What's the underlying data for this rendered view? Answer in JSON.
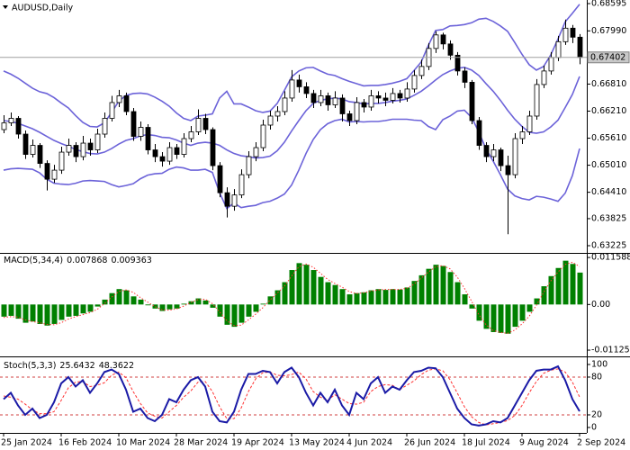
{
  "chart_data": [
    {
      "type": "candlestick",
      "title": "AUDUSD,Daily",
      "categories": [
        "25 Jan 2024",
        null,
        null,
        null,
        null,
        null,
        null,
        null,
        "16 Feb 2024",
        null,
        null,
        null,
        null,
        null,
        null,
        null,
        "10 Mar 2024",
        null,
        null,
        null,
        null,
        null,
        null,
        null,
        "28 Mar 2024",
        null,
        null,
        null,
        null,
        null,
        null,
        null,
        "19 Apr 2024",
        null,
        null,
        null,
        null,
        null,
        null,
        null,
        "13 May 2024",
        null,
        null,
        null,
        null,
        null,
        null,
        null,
        "4 Jun 2024",
        null,
        null,
        null,
        null,
        null,
        null,
        null,
        "26 Jun 2024",
        null,
        null,
        null,
        null,
        null,
        null,
        null,
        "18 Jul 2024",
        null,
        null,
        null,
        null,
        null,
        null,
        null,
        "9 Aug 2024",
        null,
        null,
        null,
        null,
        null,
        null,
        null,
        "2 Sep 2024"
      ],
      "open": [
        0.658,
        0.6595,
        0.6605,
        0.657,
        0.6525,
        0.6545,
        0.6505,
        0.647,
        0.649,
        0.653,
        0.6545,
        0.652,
        0.655,
        0.6535,
        0.657,
        0.6605,
        0.664,
        0.6655,
        0.662,
        0.6565,
        0.6585,
        0.6535,
        0.652,
        0.651,
        0.654,
        0.6525,
        0.656,
        0.6575,
        0.6605,
        0.658,
        0.65,
        0.644,
        0.641,
        0.6435,
        0.648,
        0.652,
        0.654,
        0.659,
        0.661,
        0.662,
        0.665,
        0.669,
        0.6675,
        0.666,
        0.664,
        0.6655,
        0.6635,
        0.665,
        0.6615,
        0.66,
        0.664,
        0.663,
        0.6655,
        0.665,
        0.6645,
        0.666,
        0.665,
        0.667,
        0.67,
        0.672,
        0.676,
        0.679,
        0.677,
        0.6745,
        0.671,
        0.6685,
        0.66,
        0.6545,
        0.652,
        0.6535,
        0.65,
        0.648,
        0.656,
        0.6575,
        0.661,
        0.668,
        0.671,
        0.674,
        0.6775,
        0.6805,
        0.6785
      ],
      "high": [
        0.6612,
        0.6618,
        0.661,
        0.6578,
        0.6558,
        0.655,
        0.6512,
        0.6502,
        0.6542,
        0.656,
        0.6552,
        0.6566,
        0.656,
        0.6582,
        0.6618,
        0.6655,
        0.6668,
        0.6662,
        0.6628,
        0.6598,
        0.6592,
        0.6548,
        0.653,
        0.6552,
        0.6548,
        0.6572,
        0.6588,
        0.6625,
        0.6615,
        0.6585,
        0.6508,
        0.6452,
        0.6448,
        0.6492,
        0.6532,
        0.6552,
        0.6602,
        0.6622,
        0.6632,
        0.6665,
        0.6712,
        0.6702,
        0.6685,
        0.6668,
        0.6668,
        0.6662,
        0.6665,
        0.6658,
        0.6622,
        0.6652,
        0.6648,
        0.6668,
        0.6665,
        0.6662,
        0.6672,
        0.6668,
        0.6685,
        0.6712,
        0.6735,
        0.6772,
        0.6798,
        0.6795,
        0.6778,
        0.6752,
        0.6718,
        0.669,
        0.6608,
        0.6552,
        0.6548,
        0.654,
        0.6522,
        0.6572,
        0.6588,
        0.6622,
        0.6692,
        0.6722,
        0.6752,
        0.6788,
        0.6824,
        0.6812,
        0.6792
      ],
      "low": [
        0.6572,
        0.6588,
        0.656,
        0.6515,
        0.6518,
        0.6495,
        0.6445,
        0.6462,
        0.6482,
        0.6522,
        0.6508,
        0.6512,
        0.6522,
        0.6528,
        0.6562,
        0.6598,
        0.663,
        0.6612,
        0.6555,
        0.6555,
        0.6525,
        0.6508,
        0.6498,
        0.6502,
        0.6515,
        0.6518,
        0.6552,
        0.6568,
        0.657,
        0.649,
        0.643,
        0.6385,
        0.64,
        0.6428,
        0.6472,
        0.651,
        0.6532,
        0.658,
        0.6598,
        0.6612,
        0.6642,
        0.6662,
        0.665,
        0.6628,
        0.6632,
        0.6622,
        0.6628,
        0.6598,
        0.6588,
        0.6592,
        0.6618,
        0.6622,
        0.6638,
        0.6632,
        0.6638,
        0.664,
        0.6642,
        0.6662,
        0.6692,
        0.6712,
        0.675,
        0.6758,
        0.6735,
        0.67,
        0.6672,
        0.6592,
        0.6535,
        0.6508,
        0.651,
        0.6488,
        0.6348,
        0.6472,
        0.6548,
        0.6568,
        0.6602,
        0.6672,
        0.6702,
        0.6732,
        0.6768,
        0.6772,
        0.6725
      ],
      "close": [
        0.6595,
        0.6605,
        0.657,
        0.6525,
        0.6545,
        0.6505,
        0.647,
        0.649,
        0.653,
        0.6545,
        0.652,
        0.655,
        0.6535,
        0.657,
        0.6605,
        0.664,
        0.6655,
        0.662,
        0.6565,
        0.6585,
        0.6535,
        0.652,
        0.651,
        0.654,
        0.6525,
        0.656,
        0.6575,
        0.6605,
        0.658,
        0.65,
        0.644,
        0.641,
        0.6435,
        0.648,
        0.652,
        0.654,
        0.659,
        0.661,
        0.662,
        0.665,
        0.669,
        0.6675,
        0.666,
        0.664,
        0.6655,
        0.6635,
        0.665,
        0.6615,
        0.66,
        0.664,
        0.663,
        0.6655,
        0.665,
        0.6645,
        0.666,
        0.665,
        0.667,
        0.67,
        0.672,
        0.676,
        0.679,
        0.677,
        0.6745,
        0.671,
        0.6685,
        0.66,
        0.6545,
        0.652,
        0.6535,
        0.65,
        0.648,
        0.656,
        0.6575,
        0.661,
        0.668,
        0.671,
        0.674,
        0.6775,
        0.6805,
        0.6785,
        0.67402
      ],
      "color_up": "#ffffff",
      "color_down": "#000000",
      "outline": "#000000",
      "bands": {
        "color": "#6c63d9",
        "upper": [
          0.671,
          0.6703,
          0.6694,
          0.6683,
          0.6672,
          0.6664,
          0.666,
          0.6651,
          0.6639,
          0.6628,
          0.6611,
          0.6596,
          0.6587,
          0.6586,
          0.6595,
          0.6618,
          0.6643,
          0.6656,
          0.666,
          0.6661,
          0.6659,
          0.6652,
          0.6643,
          0.6632,
          0.6617,
          0.6605,
          0.66,
          0.661,
          0.6612,
          0.6615,
          0.665,
          0.6665,
          0.6637,
          0.6637,
          0.663,
          0.6622,
          0.6618,
          0.6621,
          0.6638,
          0.6667,
          0.6697,
          0.671,
          0.6717,
          0.6718,
          0.671,
          0.6703,
          0.67,
          0.6693,
          0.6687,
          0.6682,
          0.6677,
          0.6678,
          0.6678,
          0.668,
          0.6683,
          0.6687,
          0.6693,
          0.6711,
          0.673,
          0.6767,
          0.68,
          0.6802,
          0.681,
          0.6811,
          0.6813,
          0.6817,
          0.6825,
          0.6827,
          0.682,
          0.681,
          0.6798,
          0.6773,
          0.6747,
          0.6724,
          0.6712,
          0.672,
          0.6746,
          0.6781,
          0.6819,
          0.6838,
          0.6858
        ],
        "middle": [
          0.66,
          0.6598,
          0.6594,
          0.6588,
          0.6582,
          0.6574,
          0.6565,
          0.6556,
          0.6549,
          0.6543,
          0.6536,
          0.6531,
          0.6527,
          0.6526,
          0.653,
          0.6538,
          0.6548,
          0.6556,
          0.656,
          0.6566,
          0.6569,
          0.6567,
          0.6563,
          0.6562,
          0.6557,
          0.655,
          0.6545,
          0.655,
          0.6552,
          0.655,
          0.6545,
          0.6535,
          0.6527,
          0.6522,
          0.652,
          0.6517,
          0.6518,
          0.6521,
          0.6533,
          0.6552,
          0.6577,
          0.66,
          0.6622,
          0.6638,
          0.6645,
          0.6648,
          0.665,
          0.6648,
          0.6642,
          0.664,
          0.6637,
          0.6638,
          0.6638,
          0.664,
          0.6643,
          0.6645,
          0.6648,
          0.6656,
          0.6665,
          0.6677,
          0.669,
          0.6702,
          0.671,
          0.6716,
          0.6718,
          0.6712,
          0.67,
          0.6682,
          0.6665,
          0.6645,
          0.6623,
          0.6603,
          0.6587,
          0.6574,
          0.6572,
          0.6575,
          0.6586,
          0.6601,
          0.6629,
          0.6658,
          0.6698
        ],
        "lower": [
          0.649,
          0.6493,
          0.6494,
          0.6493,
          0.6492,
          0.6484,
          0.647,
          0.6461,
          0.6459,
          0.6458,
          0.6461,
          0.6466,
          0.6467,
          0.6466,
          0.6465,
          0.6458,
          0.6453,
          0.6456,
          0.646,
          0.6471,
          0.6479,
          0.6482,
          0.6483,
          0.6492,
          0.6497,
          0.6495,
          0.649,
          0.649,
          0.6492,
          0.6485,
          0.644,
          0.6405,
          0.6417,
          0.6407,
          0.641,
          0.6412,
          0.6418,
          0.6421,
          0.6428,
          0.6437,
          0.6457,
          0.649,
          0.6527,
          0.6558,
          0.658,
          0.6593,
          0.66,
          0.6603,
          0.6597,
          0.6598,
          0.6597,
          0.6598,
          0.6598,
          0.66,
          0.6603,
          0.6603,
          0.6603,
          0.6601,
          0.66,
          0.6587,
          0.658,
          0.6602,
          0.661,
          0.6621,
          0.6623,
          0.6607,
          0.6575,
          0.6537,
          0.651,
          0.648,
          0.6448,
          0.6433,
          0.6427,
          0.6424,
          0.6432,
          0.643,
          0.6426,
          0.6421,
          0.6439,
          0.6478,
          0.6538
        ]
      },
      "ylim": [
        0.63065,
        0.68675
      ],
      "yticks": [
        0.68595,
        {
          "value": 0.6799,
          "label": "0.67990"
        },
        {
          "value": 0.6681,
          "label": "0.66810"
        },
        {
          "value": 0.6621,
          "label": "0.66210"
        },
        {
          "value": 0.6561,
          "label": "0.65610"
        },
        {
          "value": 0.6501,
          "label": "0.65010"
        },
        {
          "value": 0.6441,
          "label": "0.64410"
        },
        0.63825,
        0.63225
      ],
      "last_price_line": true
    },
    {
      "type": "macd",
      "title": "MACD(5,34,4)",
      "series": [
        {
          "color": "#008000",
          "style": "histogram",
          "values": [
            -0.003,
            -0.0028,
            -0.0035,
            -0.0045,
            -0.0042,
            -0.0048,
            -0.0052,
            -0.0048,
            -0.0038,
            -0.003,
            -0.0028,
            -0.0022,
            -0.0018,
            -0.0005,
            0.0012,
            0.0028,
            0.0038,
            0.0035,
            0.002,
            0.0012,
            -0.0002,
            -0.001,
            -0.0016,
            -0.0012,
            -0.001,
            0.0002,
            0.0008,
            0.0015,
            0.001,
            -0.0008,
            -0.003,
            -0.005,
            -0.0055,
            -0.0045,
            -0.003,
            -0.0018,
            0.0002,
            0.002,
            0.0035,
            0.0055,
            0.0085,
            0.0102,
            0.0098,
            0.0085,
            0.0068,
            0.0055,
            0.0048,
            0.0038,
            0.0025,
            0.0028,
            0.003,
            0.0035,
            0.0038,
            0.0036,
            0.0038,
            0.0037,
            0.0042,
            0.0058,
            0.0072,
            0.0088,
            0.0098,
            0.0095,
            0.008,
            0.0055,
            0.0025,
            -0.001,
            -0.004,
            -0.006,
            -0.0068,
            -0.007,
            -0.0072,
            -0.0055,
            -0.004,
            -0.0018,
            0.0015,
            0.0045,
            0.007,
            0.009,
            0.0108,
            0.01,
            0.007868
          ]
        },
        {
          "color": "#ff3030",
          "style": "dotted",
          "values": [
            -0.0032,
            -0.003,
            -0.0031,
            -0.0038,
            -0.0042,
            -0.0045,
            -0.0049,
            -0.005,
            -0.0045,
            -0.0036,
            -0.003,
            -0.0025,
            -0.002,
            -0.0012,
            0.0002,
            0.0018,
            0.0032,
            0.0036,
            0.003,
            0.0017,
            0.0006,
            -0.0005,
            -0.0013,
            -0.0014,
            -0.0011,
            -0.0004,
            0.0005,
            0.0012,
            0.0013,
            0.0002,
            -0.0018,
            -0.004,
            -0.0052,
            -0.0051,
            -0.0038,
            -0.0024,
            -0.0008,
            0.0011,
            0.0028,
            0.0045,
            0.007,
            0.0093,
            0.01,
            0.0092,
            0.0077,
            0.0062,
            0.0052,
            0.0043,
            0.0032,
            0.0027,
            0.0029,
            0.0033,
            0.0036,
            0.0037,
            0.0037,
            0.0037,
            0.004,
            0.005,
            0.0065,
            0.008,
            0.0093,
            0.0096,
            0.0088,
            0.0068,
            0.004,
            0.0008,
            -0.0025,
            -0.005,
            -0.0064,
            -0.0069,
            -0.0071,
            -0.0063,
            -0.0048,
            -0.0029,
            -0.0002,
            0.003,
            0.0058,
            0.008,
            0.0099,
            0.0104,
            0.009363
          ]
        }
      ],
      "ylim": [
        -0.0128,
        0.0125
      ],
      "yticks": [
        0.011588,
        {
          "value": 0,
          "label": "0.00"
        },
        -0.011255
      ]
    },
    {
      "type": "stochastic",
      "title": "Stoch(5,3,3)",
      "series": [
        {
          "color": "#1a1aa6",
          "style": "solid",
          "values": [
            45,
            55,
            35,
            20,
            30,
            15,
            20,
            40,
            70,
            80,
            65,
            75,
            55,
            70,
            88,
            92,
            85,
            60,
            25,
            30,
            15,
            10,
            20,
            45,
            40,
            60,
            75,
            80,
            65,
            25,
            10,
            8,
            25,
            60,
            85,
            85,
            90,
            88,
            70,
            88,
            95,
            80,
            55,
            35,
            55,
            40,
            60,
            35,
            20,
            55,
            45,
            70,
            80,
            55,
            65,
            60,
            75,
            88,
            90,
            95,
            94,
            80,
            55,
            30,
            15,
            5,
            3,
            5,
            10,
            8,
            15,
            35,
            55,
            75,
            90,
            92,
            92,
            97,
            75,
            45,
            25.6432
          ]
        },
        {
          "color": "#ff3030",
          "style": "dashed",
          "values": [
            50,
            48,
            45,
            37,
            28,
            22,
            22,
            25,
            43,
            63,
            72,
            73,
            65,
            67,
            71,
            83,
            88,
            79,
            57,
            38,
            23,
            18,
            15,
            25,
            35,
            48,
            58,
            72,
            73,
            57,
            33,
            14,
            14,
            31,
            57,
            77,
            87,
            88,
            83,
            82,
            84,
            88,
            77,
            57,
            48,
            43,
            52,
            45,
            38,
            37,
            40,
            57,
            65,
            68,
            67,
            60,
            67,
            74,
            84,
            91,
            93,
            90,
            76,
            55,
            33,
            17,
            8,
            4,
            6,
            8,
            11,
            19,
            35,
            55,
            73,
            86,
            91,
            93,
            88,
            72,
            48.3622
          ]
        }
      ],
      "levels": [
        80,
        20
      ],
      "level_color": "#d04040",
      "ylim": [
        -8.6,
        111.4
      ],
      "yticks": [
        100,
        80,
        20,
        0
      ]
    }
  ]
}
